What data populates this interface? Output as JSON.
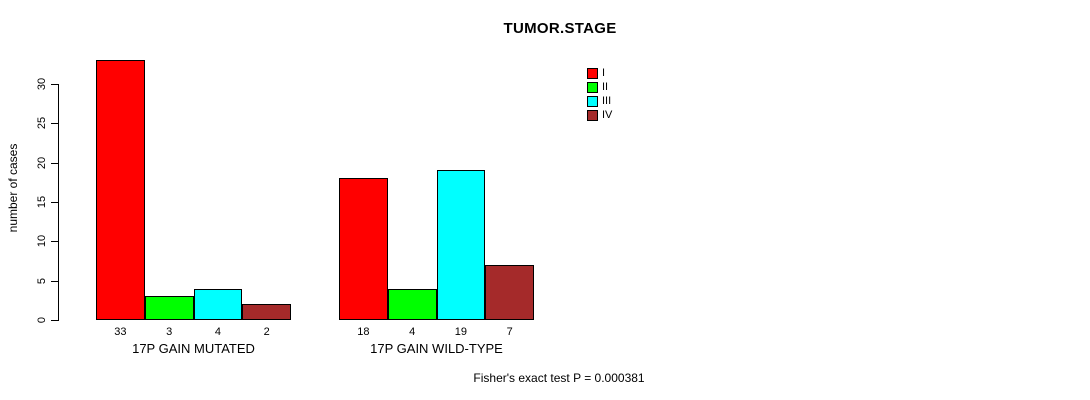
{
  "chart_data": {
    "type": "bar",
    "title": "TUMOR.STAGE",
    "ylabel": "number of cases",
    "xlabel": "",
    "ylim": [
      0,
      33
    ],
    "yticks": [
      0,
      5,
      10,
      15,
      20,
      25,
      30
    ],
    "grid": false,
    "legend_position": "top-right",
    "legend": [
      {
        "label": "I",
        "color": "#FF0000"
      },
      {
        "label": "II",
        "color": "#00FF00"
      },
      {
        "label": "III",
        "color": "#00FFFF"
      },
      {
        "label": "IV",
        "color": "#A52A2A"
      }
    ],
    "groups": [
      {
        "label": "17P GAIN MUTATED",
        "values": [
          33,
          3,
          4,
          2
        ]
      },
      {
        "label": "17P GAIN WILD-TYPE",
        "values": [
          18,
          4,
          19,
          7
        ]
      }
    ],
    "annotation": "Fisher's exact test P = 0.000381",
    "colors": {
      "background": "#FFFFFF",
      "axis": "#000000",
      "bar_border": "#000000",
      "text": "#000000"
    }
  }
}
